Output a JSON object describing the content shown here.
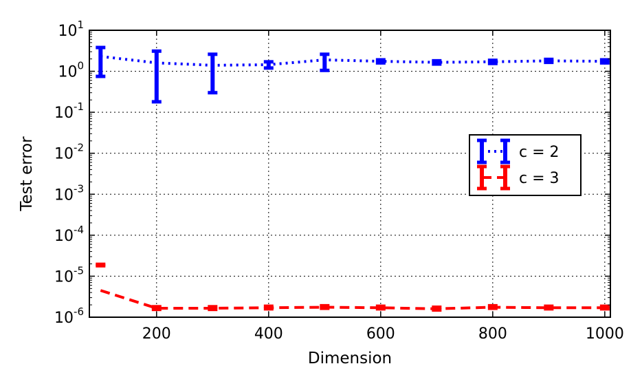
{
  "chart_data": {
    "type": "line",
    "xlabel": "Dimension",
    "ylabel": "Test error",
    "y_scale": "log",
    "xlim": [
      80,
      1010
    ],
    "ylim": [
      1e-06,
      10
    ],
    "x_ticks": [
      200,
      400,
      600,
      800,
      1000
    ],
    "x_tick_labels": [
      "200",
      "400",
      "600",
      "800",
      "1000"
    ],
    "y_ticks": [
      {
        "base": "10",
        "exp": "-6",
        "value": 1e-06
      },
      {
        "base": "10",
        "exp": "-5",
        "value": 1e-05
      },
      {
        "base": "10",
        "exp": "-4",
        "value": 0.0001
      },
      {
        "base": "10",
        "exp": "-3",
        "value": 0.001
      },
      {
        "base": "10",
        "exp": "-2",
        "value": 0.01
      },
      {
        "base": "10",
        "exp": "-1",
        "value": 0.1
      },
      {
        "base": "10",
        "exp": "0",
        "value": 1
      },
      {
        "base": "10",
        "exp": "1",
        "value": 10
      }
    ],
    "grid": true,
    "legend_position": "center-right",
    "x": [
      100,
      200,
      300,
      400,
      500,
      600,
      700,
      800,
      900,
      1000
    ],
    "series": [
      {
        "name": "c = 2",
        "color": "#0000ff",
        "line_style": "dotted",
        "values": [
          2.3,
          1.6,
          1.4,
          1.45,
          1.9,
          1.75,
          1.65,
          1.7,
          1.8,
          1.75
        ],
        "err_low": [
          0.75,
          0.18,
          0.3,
          1.2,
          1.05,
          1.6,
          1.5,
          1.55,
          1.65,
          1.6
        ],
        "err_high": [
          3.8,
          3.1,
          2.6,
          1.7,
          2.6,
          1.9,
          1.8,
          1.85,
          1.95,
          1.9
        ]
      },
      {
        "name": "c = 3",
        "color": "#ff0000",
        "line_style": "dashed",
        "values": [
          4.5e-06,
          1.65e-06,
          1.65e-06,
          1.7e-06,
          1.75e-06,
          1.7e-06,
          1.6e-06,
          1.75e-06,
          1.7e-06,
          1.7e-06
        ],
        "err_low": [
          1.8e-05,
          1.55e-06,
          1.55e-06,
          1.6e-06,
          1.65e-06,
          1.6e-06,
          1.5e-06,
          1.65e-06,
          1.6e-06,
          1.6e-06
        ],
        "err_high": [
          1.95e-05,
          1.8e-06,
          1.8e-06,
          1.85e-06,
          1.9e-06,
          1.85e-06,
          1.75e-06,
          1.9e-06,
          1.85e-06,
          1.85e-06
        ]
      }
    ]
  }
}
